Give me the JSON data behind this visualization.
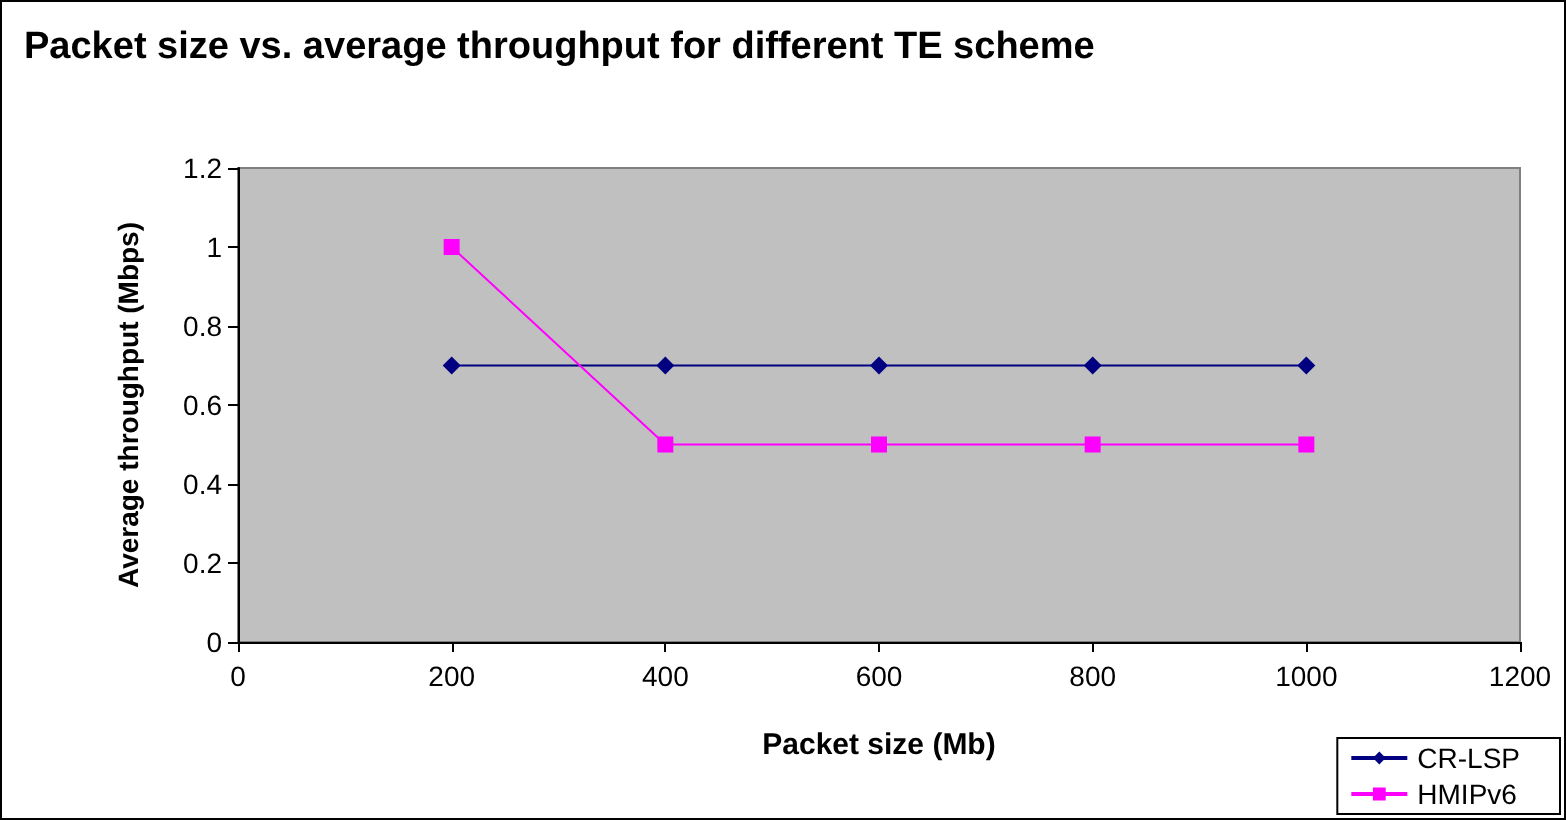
{
  "chart_data": {
    "type": "line",
    "title": "Packet size vs. average throughput for different TE scheme",
    "xlabel": "Packet size (Mb)",
    "ylabel": "Average throughput (Mbps)",
    "x": [
      200,
      400,
      600,
      800,
      1000
    ],
    "series": [
      {
        "name": "CR-LSP",
        "color": "#000080",
        "marker": "diamond",
        "values": [
          0.7,
          0.7,
          0.7,
          0.7,
          0.7
        ]
      },
      {
        "name": "HMIPv6",
        "color": "#ff00ff",
        "marker": "square",
        "values": [
          1,
          0.5,
          0.5,
          0.5,
          0.5
        ]
      }
    ],
    "xlim": [
      0,
      1200
    ],
    "xticks": [
      0,
      200,
      400,
      600,
      800,
      1000,
      1200
    ],
    "ylim": [
      0,
      1.2
    ],
    "yticks": [
      0,
      0.2,
      0.4,
      0.6,
      0.8,
      1,
      1.2
    ],
    "grid": false,
    "legend": "bottom right",
    "line_style": "solid"
  }
}
